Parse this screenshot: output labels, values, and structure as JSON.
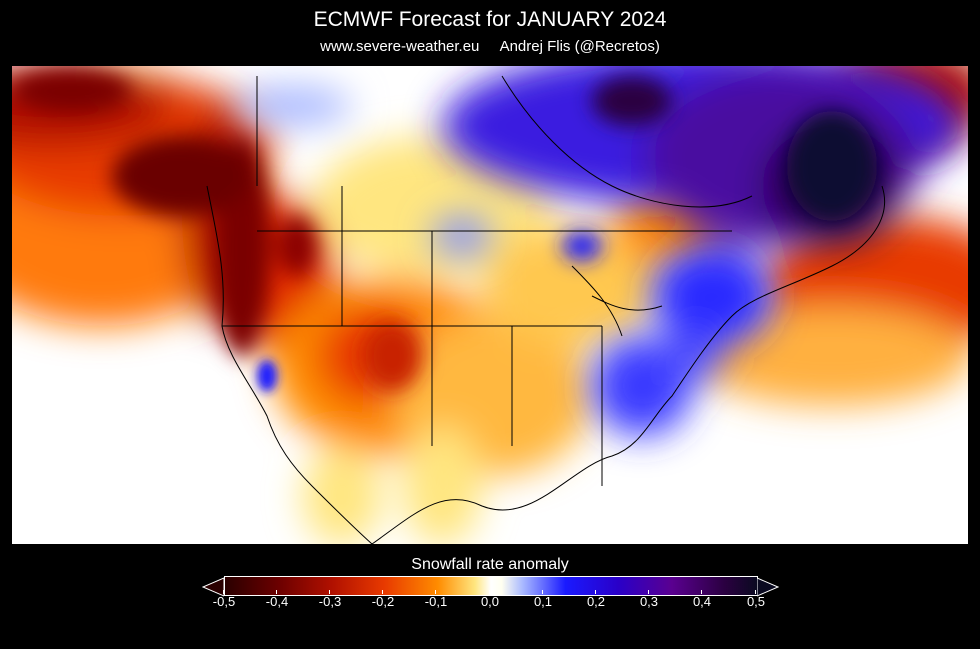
{
  "header": {
    "title": "ECMWF Forecast for JANUARY 2024",
    "website": "www.severe-weather.eu",
    "author": "Andrej Flis (@Recretos)"
  },
  "map": {
    "region": "North America",
    "variable": "Snowfall rate anomaly"
  },
  "legend": {
    "title": "Snowfall rate anomaly",
    "ticks": [
      "-0,5",
      "-0,4",
      "-0,3",
      "-0,2",
      "-0,1",
      "0,0",
      "0,1",
      "0,2",
      "0,3",
      "0,4",
      "0,5"
    ],
    "colors": {
      "strong_negative": "#2a0000",
      "negative": "#e83a00",
      "weak_negative": "#ffe680",
      "neutral": "#ffffff",
      "weak_positive": "#1a1aff",
      "positive": "#5a0090",
      "strong_positive": "#0a0a20"
    }
  }
}
